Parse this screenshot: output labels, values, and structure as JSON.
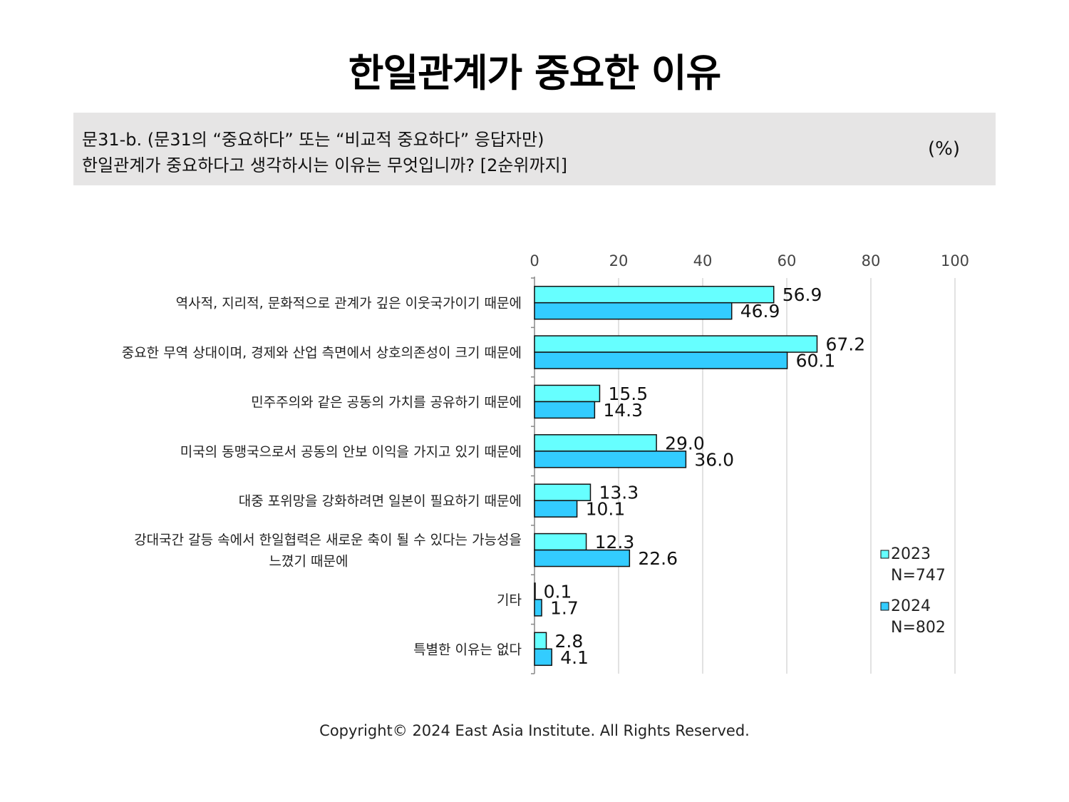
{
  "header": {
    "title": "한일관계가 중요한 이유",
    "question_line1": "문31-b. (문31의 “중요하다” 또는 “비교적 중요하다” 응답자만)",
    "question_line2": "한일관계가 중요하다고 생각하시는 이유는 무엇입니까? [2순위까지]",
    "unit": "(%)"
  },
  "footer": {
    "copyright": "Copyright© 2024 East Asia Institute. All Rights Reserved."
  },
  "colors": {
    "series_2023": "#66ffff",
    "series_2024": "#33ccff",
    "bar_stroke": "#111111",
    "grid": "#d9d9d9"
  },
  "chart_data": {
    "type": "bar",
    "orientation": "horizontal",
    "title": "한일관계가 중요한 이유",
    "xlim": [
      0,
      100
    ],
    "xticks": [
      0,
      20,
      40,
      60,
      80,
      100
    ],
    "grid": true,
    "legend_position": "bottom-right",
    "categories": [
      [
        "역사적, 지리적, 문화적으로 관계가 깊은 이웃국가이기 때문에"
      ],
      [
        "중요한 무역 상대이며, 경제와 산업 측면에서 상호의존성이 크기 때문에"
      ],
      [
        "민주주의와 같은 공동의 가치를 공유하기 때문에"
      ],
      [
        "미국의 동맹국으로서 공동의 안보 이익을 가지고 있기 때문에"
      ],
      [
        "대중 포위망을 강화하려면 일본이 필요하기 때문에"
      ],
      [
        "강대국간 갈등 속에서 한일협력은 새로운 축이 될 수 있다는 가능성을",
        "느꼈기 때문에"
      ],
      [
        "기타"
      ],
      [
        "특별한 이유는 없다"
      ]
    ],
    "series": [
      {
        "name": "2023",
        "sample": "N=747",
        "values": [
          56.9,
          67.2,
          15.5,
          29.0,
          13.3,
          12.3,
          0.1,
          2.8
        ],
        "labels": [
          "56.9",
          "67.2",
          "15.5",
          "29.0",
          "13.3",
          "12.3",
          "0.1",
          "2.8"
        ]
      },
      {
        "name": "2024",
        "sample": "N=802",
        "values": [
          46.9,
          60.1,
          14.3,
          36.0,
          10.1,
          22.6,
          1.7,
          4.1
        ],
        "labels": [
          "46.9",
          "60.1",
          "14.3",
          "36.0",
          "10.1",
          "22.6",
          "1.7",
          "4.1"
        ]
      }
    ]
  }
}
